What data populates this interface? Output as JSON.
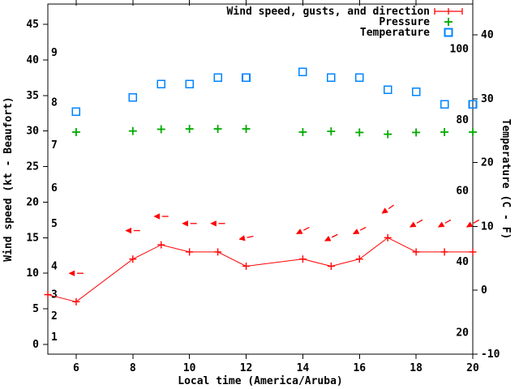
{
  "colors": {
    "wind": "#ff0000",
    "pressure": "#00aa00",
    "temperature": "#0084ff",
    "axis": "#000000",
    "background": "#ffffff"
  },
  "chart_data": {
    "type": "line",
    "title": "",
    "xlabel": "Local time (America/Aruba)",
    "ylabel_left": "Wind speed (kt - Beaufort)",
    "ylabel_right": "Temperature (C - F)",
    "legend_position": "top-right",
    "grid": false,
    "x_axis": {
      "range": [
        5,
        20
      ],
      "tick_labels": [
        "6",
        "8",
        "10",
        "12",
        "14",
        "16",
        "18",
        "20"
      ],
      "tick_values": [
        6,
        8,
        10,
        12,
        14,
        16,
        18,
        20
      ]
    },
    "left_axis": {
      "unit": "kt",
      "range": [
        0,
        45
      ],
      "tick_values": [
        0,
        5,
        10,
        15,
        20,
        25,
        30,
        35,
        40,
        45
      ]
    },
    "beaufort_inner_labels": [
      {
        "label": "1",
        "kt": 1
      },
      {
        "label": "2",
        "kt": 4
      },
      {
        "label": "3",
        "kt": 7
      },
      {
        "label": "4",
        "kt": 11
      },
      {
        "label": "5",
        "kt": 17
      },
      {
        "label": "6",
        "kt": 22
      },
      {
        "label": "7",
        "kt": 28
      },
      {
        "label": "8",
        "kt": 34
      },
      {
        "label": "9",
        "kt": 41
      }
    ],
    "right_axis": {
      "unit": "C",
      "range": [
        -10,
        40
      ],
      "tick_values": [
        -10,
        0,
        10,
        20,
        30,
        40
      ]
    },
    "fahrenheit_inner_labels": [
      {
        "label": "20",
        "f": 20
      },
      {
        "label": "40",
        "f": 40
      },
      {
        "label": "60",
        "f": 60
      },
      {
        "label": "80",
        "f": 80
      },
      {
        "label": "100",
        "f": 100
      }
    ],
    "legend": [
      {
        "label": "Wind speed, gusts, and direction",
        "series": "wind",
        "sample": "errorbar"
      },
      {
        "label": "Pressure",
        "series": "pressure",
        "sample": "plus"
      },
      {
        "label": "Temperature",
        "series": "temperature",
        "sample": "square"
      }
    ],
    "series": [
      {
        "name": "wind_speed",
        "axis": "left",
        "style": "line_with_plus_markers",
        "x": [
          5,
          6,
          8,
          9,
          10,
          11,
          12,
          14,
          15,
          16,
          17,
          18,
          19,
          20
        ],
        "y": [
          7,
          6,
          12,
          14,
          13,
          13,
          11,
          12,
          11,
          12,
          15,
          13,
          13,
          13
        ]
      },
      {
        "name": "wind_gusts_direction",
        "axis": "left",
        "style": "arrow_pointing_left",
        "x": [
          6,
          8,
          9,
          10,
          11,
          12,
          14,
          15,
          16,
          17,
          18,
          19,
          20
        ],
        "y": [
          10,
          16,
          18,
          17,
          17,
          15,
          16,
          15,
          16,
          19,
          17,
          17,
          17
        ],
        "tilt_deg_below_horizontal": [
          0,
          0,
          0,
          0,
          0,
          12,
          27,
          27,
          27,
          35,
          30,
          30,
          30
        ]
      },
      {
        "name": "pressure",
        "axis": "left_scale_raw_inHg",
        "style": "plus_markers",
        "x": [
          6,
          8,
          9,
          10,
          11,
          12,
          14,
          15,
          16,
          17,
          18,
          19,
          20
        ],
        "y": [
          29.85,
          30.0,
          30.25,
          30.3,
          30.3,
          30.3,
          29.85,
          29.95,
          29.8,
          29.55,
          29.8,
          29.85,
          29.85
        ]
      },
      {
        "name": "temperature",
        "axis": "right",
        "style": "open_square_markers",
        "x": [
          6,
          8,
          9,
          10,
          11,
          12,
          14,
          15,
          16,
          17,
          18,
          19,
          20
        ],
        "y": [
          28.0,
          30.2,
          32.3,
          32.3,
          33.3,
          33.3,
          34.2,
          33.3,
          33.3,
          31.4,
          31.1,
          29.1,
          29.1
        ]
      }
    ]
  }
}
